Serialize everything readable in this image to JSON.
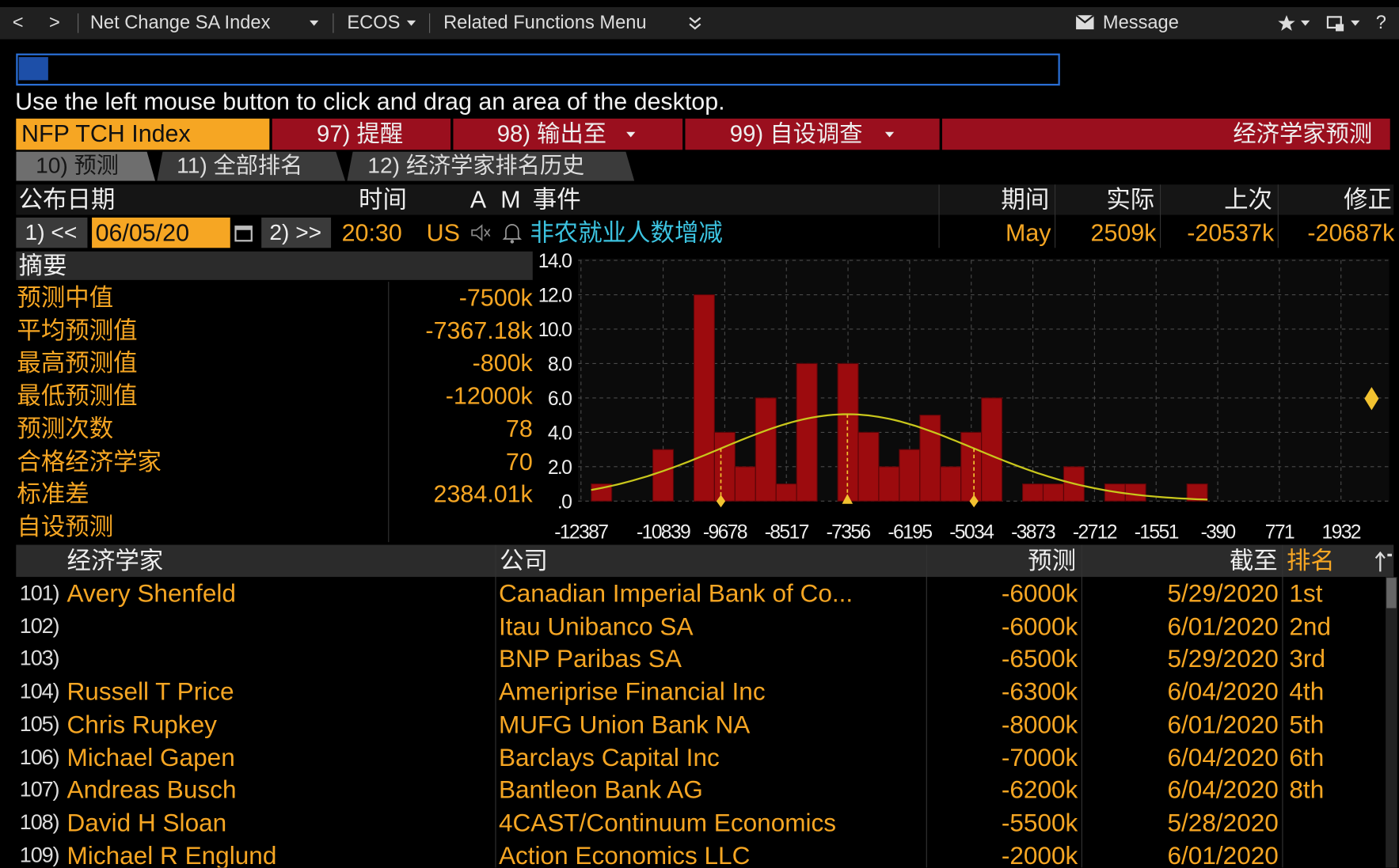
{
  "toolbar": {
    "back": "<",
    "forward": ">",
    "menu1": "Net Change SA Index",
    "menu2": "ECOS",
    "menu3": "Related Functions Menu",
    "message": "Message",
    "help": "?"
  },
  "hint": "Use the left mouse button to click and drag an area of the desktop.",
  "actions": {
    "ticker": "NFP TCH Index",
    "items": [
      "97) 提醒",
      "98) 输出至",
      "99) 自设调查"
    ],
    "title": "经济学家预测"
  },
  "tabs": [
    "10) 预测",
    "11) 全部排名",
    "12) 经济学家排名历史"
  ],
  "event_header": [
    "公布日期",
    "时间",
    "A",
    "M",
    "事件",
    "期间",
    "实际",
    "上次",
    "修正"
  ],
  "event": {
    "prev": "1) <<",
    "date": "06/05/20",
    "next": "2) >>",
    "time": "20:30",
    "country": "US",
    "name": "非农就业人数增减",
    "period": "May",
    "actual": {
      "value": 2509,
      "label": "2509k"
    },
    "previous": "-20537k",
    "revised": "-20687k"
  },
  "summary": {
    "title": "摘要",
    "rows": [
      {
        "label": "预测中值",
        "value": "-7500k"
      },
      {
        "label": "平均预测值",
        "value": {
          "value": -7367.18,
          "label": "-7367.18k"
        }
      },
      {
        "label": "最高预测值",
        "value": "-800k"
      },
      {
        "label": "最低预测值",
        "value": "-12000k"
      },
      {
        "label": "预测次数",
        "value": "78"
      },
      {
        "label": "合格经济学家",
        "value": "70"
      },
      {
        "label": "标准差",
        "value": {
          "value": 2384.01,
          "label": "2384.01k"
        }
      },
      {
        "label": "自设预测",
        "value": null
      }
    ]
  },
  "chart_data": {
    "type": "histogram",
    "bins": [
      -12194,
      -11807,
      -11420,
      -11033,
      -10646,
      -10259,
      -9872,
      -9485,
      -9098,
      -8711,
      -8324,
      -7937,
      -7550,
      -7163,
      -6776,
      -6389,
      -6002,
      -5615,
      -5228,
      -4841,
      -4454,
      -4067,
      -3680,
      -3293,
      -2906,
      -2519,
      -2132,
      -1745,
      -1358,
      -971,
      -584
    ],
    "values": [
      1,
      0,
      0,
      3,
      0,
      12,
      4,
      2,
      6,
      1,
      8,
      0,
      8,
      4,
      2,
      3,
      5,
      2,
      4,
      6,
      0,
      1,
      1,
      2,
      0,
      1,
      1,
      0,
      0,
      1
    ],
    "color": "#9c0b0e",
    "curve_color": "#c9c71c",
    "marker_color": "#f2c230",
    "xlim": [
      -12440,
      2840
    ],
    "ylim": [
      0,
      14
    ],
    "xticks": [
      -12387,
      -10839,
      -9678,
      -8517,
      -7356,
      -6195,
      -5034,
      -3873,
      -2712,
      -1551,
      -390,
      771,
      1932
    ],
    "yticks": [
      {
        "value": 14,
        "label": "14.0"
      },
      {
        "value": 12,
        "label": "12.0"
      },
      {
        "value": 10,
        "label": "10.0"
      },
      {
        "value": 8,
        "label": "8.0"
      },
      {
        "value": 6,
        "label": "6.0"
      },
      {
        "value": 4,
        "label": "4.0"
      },
      {
        "value": 2,
        "label": "2.0"
      },
      {
        "value": 0,
        "label": ".0"
      }
    ],
    "grid": true
  },
  "table": {
    "header": [
      "经济学家",
      "公司",
      "预测",
      "截至",
      "排名"
    ],
    "rows": [
      [
        "101)",
        "Avery Shenfeld",
        "Canadian Imperial Bank of Co...",
        "-6000k",
        "5/29/2020",
        "1st"
      ],
      [
        "102)",
        null,
        "Itau Unibanco SA",
        "-6000k",
        "6/01/2020",
        "2nd"
      ],
      [
        "103)",
        null,
        "BNP Paribas SA",
        "-6500k",
        "5/29/2020",
        "3rd"
      ],
      [
        "104)",
        "Russell T Price",
        "Ameriprise Financial Inc",
        "-6300k",
        "6/04/2020",
        "4th"
      ],
      [
        "105)",
        "Chris Rupkey",
        "MUFG Union Bank NA",
        "-8000k",
        "6/01/2020",
        "5th"
      ],
      [
        "106)",
        "Michael Gapen",
        "Barclays Capital Inc",
        "-7000k",
        "6/04/2020",
        "6th"
      ],
      [
        "107)",
        "Andreas Busch",
        "Bantleon Bank AG",
        "-6200k",
        "6/04/2020",
        "8th"
      ],
      [
        "108)",
        "David H Sloan",
        "4CAST/Continuum Economics",
        "-5500k",
        "5/28/2020",
        null
      ],
      [
        "109)",
        "Michael R Englund",
        "Action Economics LLC",
        "-2000k",
        "6/01/2020",
        null
      ]
    ]
  }
}
